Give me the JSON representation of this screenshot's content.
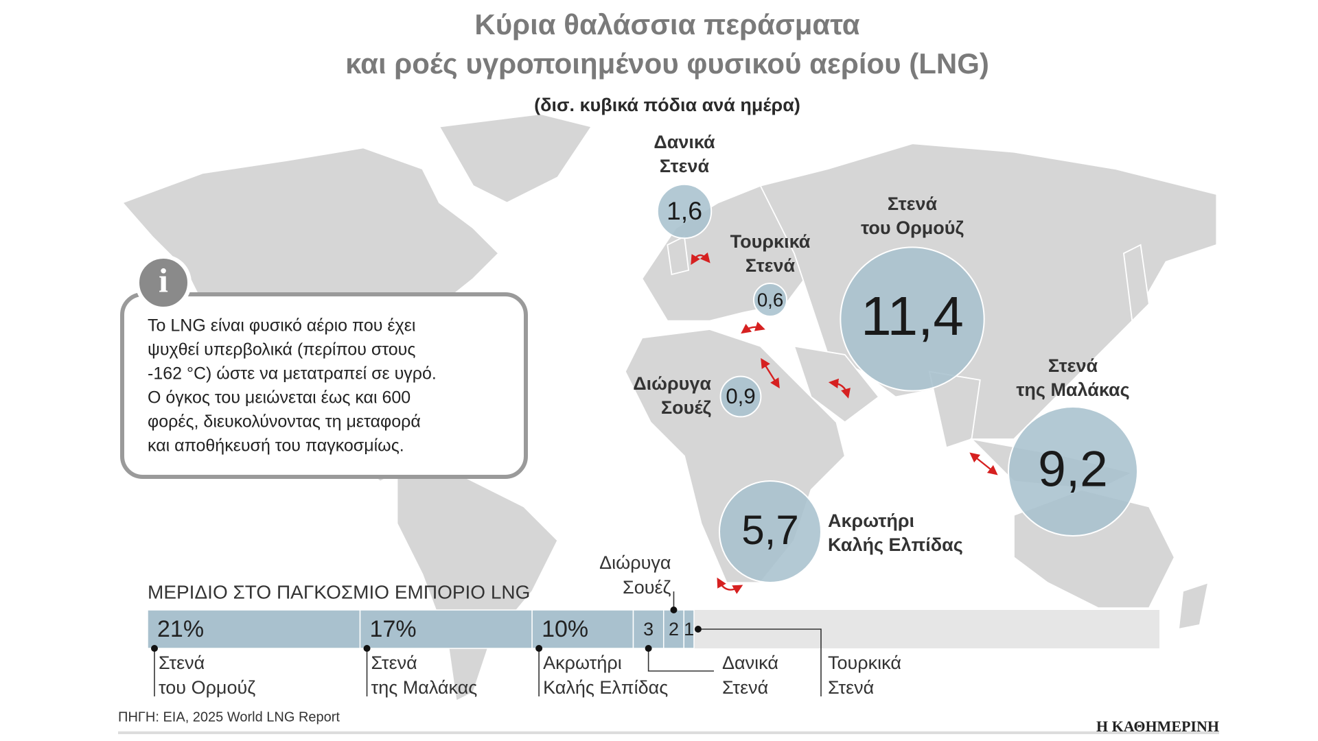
{
  "title_lines": [
    "Κύρια θαλάσσια περάσματα",
    "και ροές υγροποιημένου φυσικού αερίου (LNG)"
  ],
  "subtitle": "(δισ. κυβικά πόδια ανά ημέρα)",
  "info": {
    "icon": "i",
    "lines": [
      "Το LNG είναι φυσικό αέριο που έχει",
      "ψυχθεί υπερβολικά (περίπου στους",
      "-162 °C) ώστε να μετατραπεί σε υγρό.",
      "Ο όγκος του μειώνεται έως και 600",
      "φορές, διευκολύνοντας τη μεταφορά",
      "και αποθήκευσή του παγκοσμίως."
    ]
  },
  "chart_data": [
    {
      "type": "bubble",
      "categories": [
        [
          "Δανικά",
          "Στενά"
        ],
        [
          "Τουρκικά",
          "Στενά"
        ],
        [
          "Στενά",
          "του Ορμούζ"
        ],
        [
          "Διώρυγα",
          "Σουέζ"
        ],
        [
          "Στενά",
          "της Μαλάκας"
        ],
        [
          "Ακρωτήρι",
          "Καλής Ελπίδας"
        ]
      ],
      "values": [
        1.6,
        0.6,
        11.4,
        0.9,
        9.2,
        5.7
      ],
      "value_labels": [
        "1,6",
        "0,6",
        "11,4",
        "0,9",
        "9,2",
        "5,7"
      ],
      "color": "#a9c1ce"
    },
    {
      "type": "stacked-bar",
      "title": "ΜΕΡΙΔΙΟ ΣΤΟ ΠΑΓΚΟΣΜΙΟ ΕΜΠΟΡΙΟ LNG",
      "categories": [
        [
          "Στενά",
          "του Ορμούζ"
        ],
        [
          "Στενά",
          "της Μαλάκας"
        ],
        [
          "Ακρωτήρι",
          "Καλής Ελπίδας"
        ],
        [
          "Δανικά",
          "Στενά"
        ],
        [
          "Διώρυγα",
          "Σουέζ"
        ],
        [
          "Τουρκικά",
          "Στενά"
        ]
      ],
      "values": [
        21,
        17,
        10,
        3,
        2,
        1
      ],
      "value_labels": [
        "21%",
        "17%",
        "10%",
        "3",
        "2",
        "1"
      ],
      "xlim": [
        0,
        100
      ],
      "color": "#a9c1ce",
      "background": "#e6e6e6"
    }
  ],
  "source": "ΠΗΓΗ: EIA, 2025 World LNG Report",
  "brand": "Η ΚΑΘΗΜΕΡΙΝΗ"
}
